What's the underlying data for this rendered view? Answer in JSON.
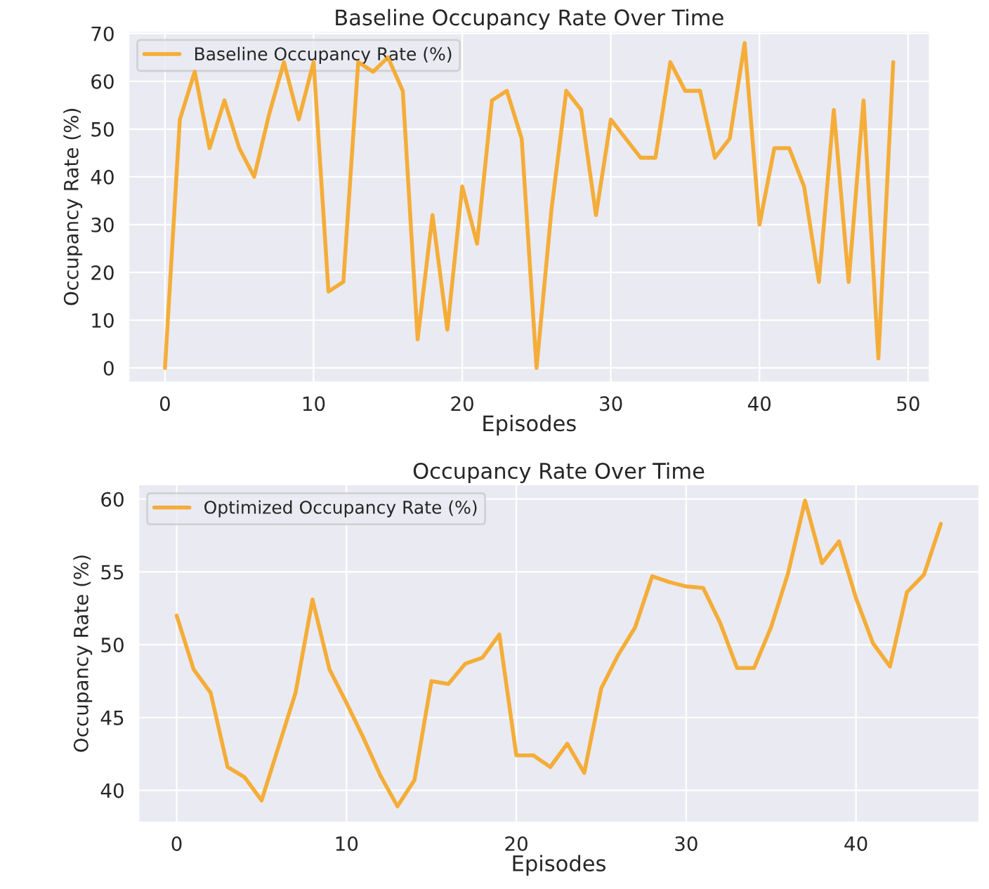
{
  "chart_data": [
    {
      "type": "line",
      "title": "Baseline Occupancy Rate Over Time",
      "xlabel": "Episodes",
      "ylabel": "Occupancy Rate (%)",
      "x": [
        0,
        1,
        2,
        3,
        4,
        5,
        6,
        7,
        8,
        9,
        10,
        11,
        12,
        13,
        14,
        15,
        16,
        17,
        18,
        19,
        20,
        21,
        22,
        23,
        24,
        25,
        26,
        27,
        28,
        29,
        30,
        31,
        32,
        33,
        34,
        35,
        36,
        37,
        38,
        39,
        40,
        41,
        42,
        43,
        44,
        45,
        46,
        47,
        48,
        49
      ],
      "series": [
        {
          "name": "Baseline Occupancy Rate (%)",
          "color": "#f5a623",
          "values": [
            0,
            52,
            62,
            46,
            56,
            46,
            40,
            53,
            64,
            52,
            64,
            16,
            18,
            64,
            62,
            65,
            58,
            6,
            32,
            8,
            38,
            26,
            56,
            58,
            48,
            0,
            33,
            58,
            54,
            32,
            52,
            48,
            44,
            44,
            64,
            58,
            58,
            44,
            48,
            68,
            30,
            46,
            46,
            38,
            18,
            54,
            18,
            56,
            2,
            64
          ]
        }
      ],
      "xlim": [
        -2.45,
        51.45
      ],
      "ylim": [
        -3,
        70.5
      ],
      "xticks": [
        0,
        10,
        20,
        30,
        40,
        50
      ],
      "yticks": [
        0,
        10,
        20,
        30,
        40,
        50,
        60,
        70
      ],
      "grid": true,
      "legend": "top left"
    },
    {
      "type": "line",
      "title": "Occupancy Rate Over Time",
      "xlabel": "Episodes",
      "ylabel": "Occupancy Rate (%)",
      "x": [
        0,
        1,
        2,
        3,
        4,
        5,
        6,
        7,
        8,
        9,
        10,
        11,
        12,
        13,
        14,
        15,
        16,
        17,
        18,
        19,
        20,
        21,
        22,
        23,
        24,
        25,
        26,
        27,
        28,
        29,
        30,
        31,
        32,
        33,
        34,
        35,
        36,
        37,
        38,
        39,
        40,
        41,
        42,
        43,
        44,
        45
      ],
      "series": [
        {
          "name": "Optimized Occupancy Rate (%)",
          "color": "#f5a623",
          "values": [
            52.0,
            48.3,
            46.7,
            41.6,
            40.9,
            39.3,
            43.0,
            46.7,
            53.1,
            48.3,
            46.0,
            43.6,
            41.0,
            38.9,
            40.7,
            47.5,
            47.3,
            48.7,
            49.1,
            50.7,
            42.4,
            42.4,
            41.6,
            43.2,
            41.2,
            47.0,
            49.3,
            51.2,
            54.7,
            54.3,
            54.0,
            53.9,
            51.5,
            48.4,
            48.4,
            51.2,
            54.9,
            59.9,
            55.6,
            57.1,
            53.2,
            50.1,
            48.5,
            53.6,
            54.8,
            58.3
          ]
        }
      ],
      "xlim": [
        -2.25,
        47.25
      ],
      "ylim": [
        37.8,
        61
      ],
      "xticks": [
        0,
        10,
        20,
        30,
        40
      ],
      "yticks": [
        40,
        45,
        50,
        55,
        60
      ],
      "grid": true,
      "legend": "top left"
    }
  ]
}
